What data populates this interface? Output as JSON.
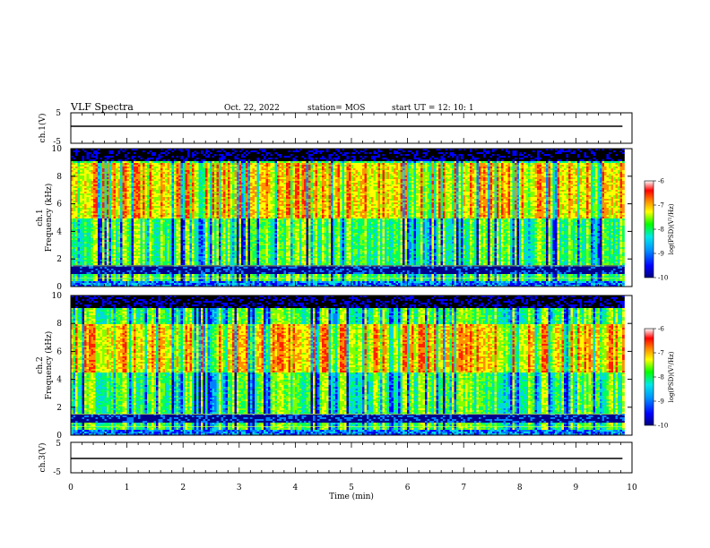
{
  "header": {
    "title": "VLF Spectra",
    "date": "Oct. 22, 2022",
    "station": "station= MOS",
    "start": "start  UT =   12: 10: 1"
  },
  "panels": {
    "ch1_wave_label": "ch.1(V)",
    "ch1_spec_label_line1": "ch.1",
    "ch1_spec_label_line2": "Frequency (kHz)",
    "ch2_spec_label_line1": "ch.2",
    "ch2_spec_label_line2": "Frequency (kHz)",
    "ch3_wave_label": "ch.3(V)",
    "colorbar_label": "log(PSD)(V²/Hz)"
  },
  "x_axis": {
    "label": "Time  (min)",
    "ticks": [
      "0",
      "1",
      "2",
      "3",
      "4",
      "5",
      "6",
      "7",
      "8",
      "9",
      "10"
    ]
  },
  "colors": {
    "scale": [
      "#000000",
      "#0000cc",
      "#0080ff",
      "#00e0e0",
      "#00ff00",
      "#ffff00",
      "#ff8000",
      "#ff0000",
      "#ffffff"
    ]
  },
  "chart_data": [
    {
      "type": "line",
      "name": "ch1-waveform",
      "ylabel": "ch.1(V)",
      "xlabel": "Time  (min)",
      "xlim": [
        0,
        10
      ],
      "ylim": [
        -5,
        5
      ],
      "yticks": [
        "5",
        "-5"
      ],
      "data_extent_min": 9.83,
      "baseline_value": 0
    },
    {
      "type": "heatmap",
      "name": "ch1-spectrogram",
      "ylabel": "ch.1 Frequency (kHz)",
      "xlim": [
        0,
        10
      ],
      "ylim": [
        0,
        10
      ],
      "yticks": [
        "0",
        "2",
        "4",
        "6",
        "8",
        "10"
      ],
      "colorbar": {
        "label": "log(PSD)(V²/Hz)",
        "range": [
          -10,
          -6
        ],
        "ticks": [
          "-6",
          "-7",
          "-8",
          "-9",
          "-10"
        ]
      },
      "bands_khz": {
        "dark_low": [
          1.0,
          1.6
        ],
        "dark_top": [
          9.2,
          10
        ],
        "intense": [
          5.0,
          9.0
        ]
      }
    },
    {
      "type": "heatmap",
      "name": "ch2-spectrogram",
      "ylabel": "ch.2 Frequency (kHz)",
      "xlim": [
        0,
        10
      ],
      "ylim": [
        0,
        10
      ],
      "yticks": [
        "0",
        "2",
        "4",
        "6",
        "8",
        "10"
      ],
      "colorbar": {
        "label": "log(PSD)(V²/Hz)",
        "range": [
          -10,
          -6
        ],
        "ticks": [
          "-6",
          "-7",
          "-8",
          "-9",
          "-10"
        ]
      },
      "bands_khz": {
        "dark_low": [
          1.0,
          1.6
        ],
        "dark_top": [
          9.2,
          10
        ],
        "intense": [
          4.5,
          8.0
        ]
      }
    },
    {
      "type": "line",
      "name": "ch3-waveform",
      "ylabel": "ch.3(V)",
      "xlim": [
        0,
        10
      ],
      "ylim": [
        -5,
        5
      ],
      "yticks": [
        "5",
        "-5"
      ],
      "data_extent_min": 9.83,
      "baseline_value": -1
    }
  ]
}
